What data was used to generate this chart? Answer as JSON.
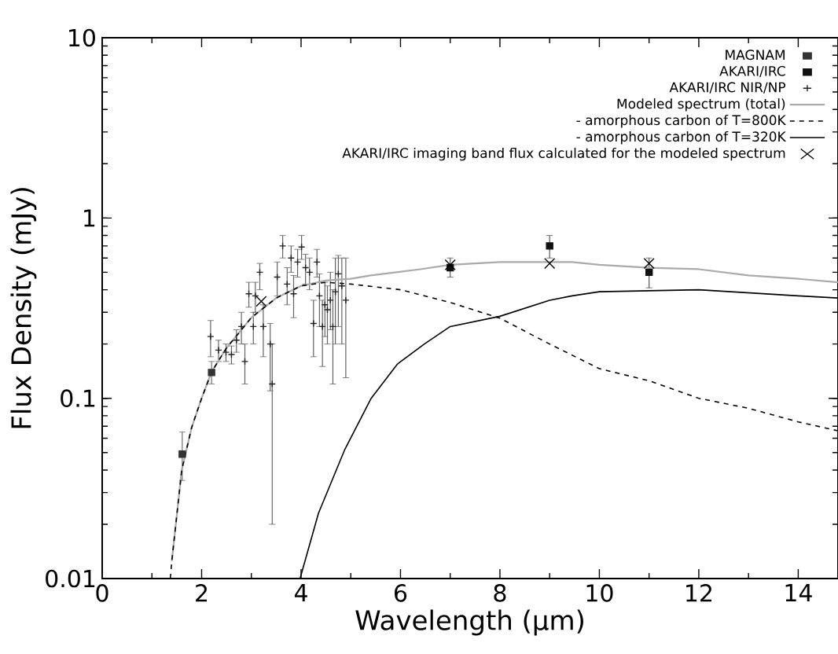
{
  "chart_data": {
    "type": "scatter",
    "xlabel": "Wavelength (µm)",
    "ylabel": "Flux Density (mJy)",
    "xlim": [
      0,
      14.8
    ],
    "ylim": [
      0.01,
      10
    ],
    "xticks": [
      0,
      2,
      4,
      6,
      8,
      10,
      12,
      14
    ],
    "yticks": [
      0.01,
      0.1,
      1,
      10
    ],
    "log": "y",
    "grid": false,
    "legend": "top right",
    "series": [
      {
        "name": "MAGNAM",
        "marker": "square",
        "color": "#333333",
        "x": [
          1.61,
          2.2
        ],
        "values": [
          0.049,
          0.139
        ],
        "errors": [
          [
            0.035,
            0.065
          ],
          [
            0.12,
            0.16
          ]
        ]
      },
      {
        "name": "AKARI/IRC",
        "marker": "square",
        "color": "#111111",
        "x": [
          7,
          9,
          11
        ],
        "values": [
          0.53,
          0.7,
          0.5
        ],
        "errors": [
          [
            0.47,
            0.6
          ],
          [
            0.6,
            0.8
          ],
          [
            0.41,
            0.6
          ]
        ]
      },
      {
        "name": "AKARI/IRC NIR/NP",
        "marker": "plus",
        "color": "#222222",
        "x": [
          2.18,
          2.34,
          2.49,
          2.6,
          2.7,
          2.8,
          2.87,
          2.95,
          3.04,
          3.08,
          3.17,
          3.24,
          3.38,
          3.42,
          3.52,
          3.63,
          3.72,
          3.8,
          3.85,
          3.93,
          4.01,
          4.09,
          4.17,
          4.25,
          4.32,
          4.37,
          4.43,
          4.48,
          4.53,
          4.59,
          4.64,
          4.69,
          4.75,
          4.82,
          4.9
        ],
        "values": [
          0.22,
          0.185,
          0.18,
          0.175,
          0.21,
          0.25,
          0.16,
          0.38,
          0.25,
          0.37,
          0.5,
          0.25,
          0.2,
          0.12,
          0.47,
          0.7,
          0.43,
          0.6,
          0.38,
          0.57,
          0.69,
          0.53,
          0.5,
          0.26,
          0.57,
          0.37,
          0.25,
          0.33,
          0.31,
          0.35,
          0.25,
          0.39,
          0.49,
          0.42,
          0.35
        ],
        "errors": [
          [
            0.17,
            0.27
          ],
          [
            0.16,
            0.21
          ],
          [
            0.16,
            0.2
          ],
          [
            0.155,
            0.195
          ],
          [
            0.18,
            0.24
          ],
          [
            0.2,
            0.3
          ],
          [
            0.12,
            0.2
          ],
          [
            0.32,
            0.44
          ],
          [
            0.2,
            0.3
          ],
          [
            0.3,
            0.44
          ],
          [
            0.4,
            0.56
          ],
          [
            0.17,
            0.33
          ],
          [
            0.11,
            0.26
          ],
          [
            0.02,
            0.2
          ],
          [
            0.37,
            0.57
          ],
          [
            0.6,
            0.8
          ],
          [
            0.33,
            0.53
          ],
          [
            0.5,
            0.7
          ],
          [
            0.28,
            0.48
          ],
          [
            0.47,
            0.67
          ],
          [
            0.59,
            0.8
          ],
          [
            0.43,
            0.63
          ],
          [
            0.4,
            0.6
          ],
          [
            0.17,
            0.35
          ],
          [
            0.47,
            0.67
          ],
          [
            0.25,
            0.49
          ],
          [
            0.15,
            0.35
          ],
          [
            0.22,
            0.44
          ],
          [
            0.2,
            0.42
          ],
          [
            0.24,
            0.5
          ],
          [
            0.12,
            0.4
          ],
          [
            0.2,
            0.6
          ],
          [
            0.25,
            0.62
          ],
          [
            0.2,
            0.6
          ],
          [
            0.13,
            0.6
          ]
        ]
      },
      {
        "name": "Modeled spectrum (total)",
        "type": "line",
        "line_style": "solid",
        "color": "#aaaaaa",
        "x": [
          1.4,
          1.6,
          1.8,
          2,
          2.2,
          2.5,
          3,
          3.5,
          4,
          4.5,
          5,
          5.4,
          6.4,
          7,
          8,
          9.45,
          10,
          11,
          12,
          13,
          14,
          14.8
        ],
        "values": [
          0.0125,
          0.04,
          0.069,
          0.1,
          0.14,
          0.19,
          0.28,
          0.36,
          0.42,
          0.45,
          0.46,
          0.48,
          0.52,
          0.55,
          0.57,
          0.57,
          0.55,
          0.53,
          0.52,
          0.48,
          0.46,
          0.44
        ]
      },
      {
        "name": "- amorphous carbon of T=800K",
        "type": "line",
        "line_style": "dashed",
        "color": "#000000",
        "x": [
          1.37,
          1.4,
          1.6,
          1.8,
          2,
          2.2,
          2.5,
          3,
          3.5,
          4,
          4.5,
          5,
          6,
          7,
          8,
          9,
          10,
          11,
          12,
          13,
          14,
          14.8
        ],
        "values": [
          0.01,
          0.0125,
          0.04,
          0.069,
          0.1,
          0.14,
          0.19,
          0.28,
          0.36,
          0.42,
          0.44,
          0.43,
          0.4,
          0.34,
          0.278,
          0.2,
          0.146,
          0.125,
          0.1,
          0.088,
          0.074,
          0.066
        ]
      },
      {
        "name": "- amorphous carbon of T=320K",
        "type": "line",
        "line_style": "solid",
        "color": "#000000",
        "x": [
          3.98,
          4.35,
          4.88,
          5.41,
          5.94,
          6.48,
          7,
          8,
          9,
          9.45,
          10,
          12,
          14,
          14.8
        ],
        "values": [
          0.01,
          0.023,
          0.052,
          0.1,
          0.155,
          0.2,
          0.25,
          0.285,
          0.35,
          0.37,
          0.39,
          0.4,
          0.37,
          0.36
        ]
      },
      {
        "name": "AKARI/IRC imaging band flux calculated for the modeled spectrum",
        "marker": "cross",
        "color": "#000000",
        "x": [
          3.2,
          7,
          9,
          11
        ],
        "values": [
          0.345,
          0.55,
          0.56,
          0.56
        ]
      }
    ]
  }
}
